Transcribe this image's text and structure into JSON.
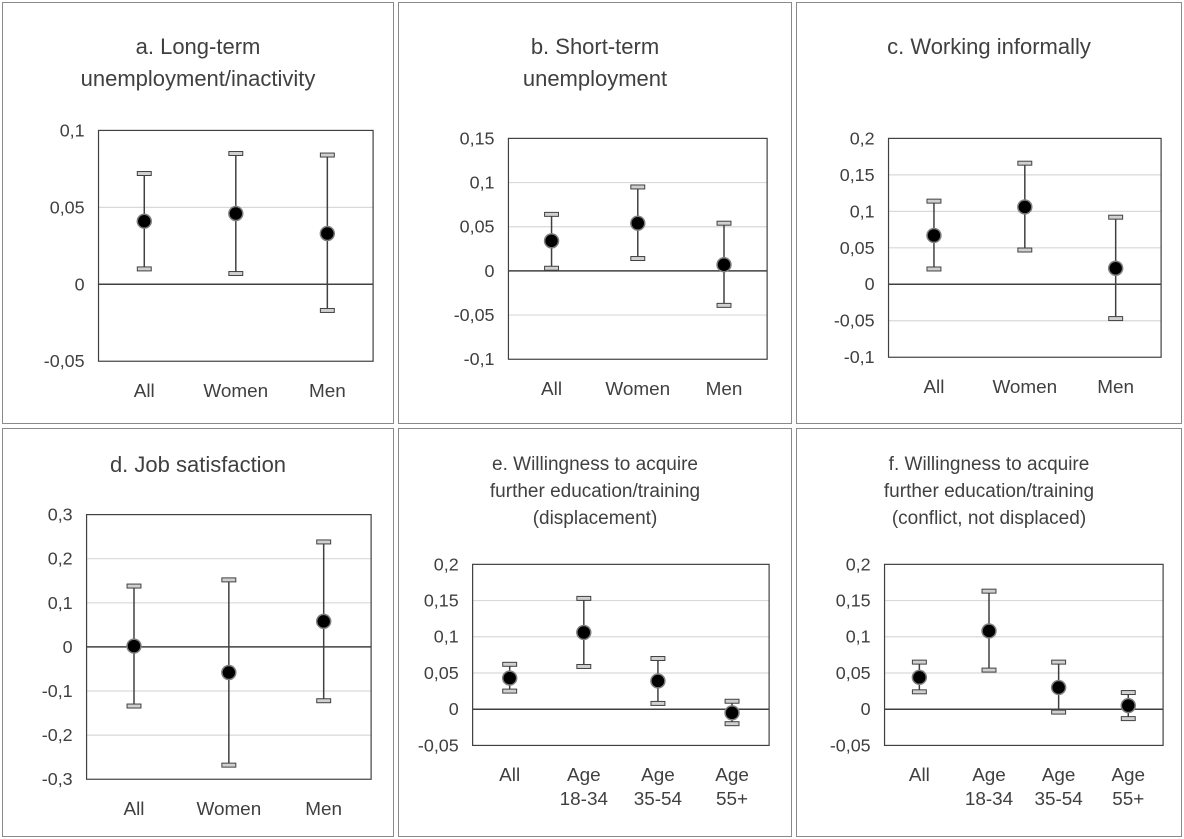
{
  "chart_data": [
    {
      "type": "scatter",
      "title_lines": [
        "a. Long-term",
        "unemployment/inactivity"
      ],
      "categories": [
        [
          "All"
        ],
        [
          "Women"
        ],
        [
          "Men"
        ]
      ],
      "yticks": [
        "0,1",
        "0,05",
        "0",
        "-0,05"
      ],
      "ylim": [
        -0.05,
        0.1
      ],
      "series": [
        {
          "point": 0.041,
          "lower": 0.01,
          "upper": 0.072
        },
        {
          "point": 0.046,
          "lower": 0.007,
          "upper": 0.085
        },
        {
          "point": 0.033,
          "lower": -0.017,
          "upper": 0.084
        }
      ]
    },
    {
      "type": "scatter",
      "title_lines": [
        "b. Short-term",
        "unemployment"
      ],
      "categories": [
        [
          "All"
        ],
        [
          "Women"
        ],
        [
          "Men"
        ]
      ],
      "yticks": [
        "0,15",
        "0,1",
        "0,05",
        "0",
        "-0,05",
        "-0,1"
      ],
      "ylim": [
        -0.1,
        0.15
      ],
      "series": [
        {
          "point": 0.034,
          "lower": 0.003,
          "upper": 0.064
        },
        {
          "point": 0.054,
          "lower": 0.014,
          "upper": 0.095
        },
        {
          "point": 0.007,
          "lower": -0.039,
          "upper": 0.054
        }
      ]
    },
    {
      "type": "scatter",
      "title_lines": [
        "c. Working informally"
      ],
      "categories": [
        [
          "All"
        ],
        [
          "Women"
        ],
        [
          "Men"
        ]
      ],
      "yticks": [
        "0,2",
        "0,15",
        "0,1",
        "0,05",
        "0",
        "-0,05",
        "-0,1"
      ],
      "ylim": [
        -0.1,
        0.2
      ],
      "series": [
        {
          "point": 0.067,
          "lower": 0.021,
          "upper": 0.114
        },
        {
          "point": 0.106,
          "lower": 0.047,
          "upper": 0.166
        },
        {
          "point": 0.022,
          "lower": -0.047,
          "upper": 0.092
        }
      ]
    },
    {
      "type": "scatter",
      "title_lines": [
        "d. Job satisfaction"
      ],
      "categories": [
        [
          "All"
        ],
        [
          "Women"
        ],
        [
          "Men"
        ]
      ],
      "yticks": [
        "0,3",
        "0,2",
        "0,1",
        "0",
        "-0,1",
        "-0,2",
        "-0,3"
      ],
      "ylim": [
        -0.3,
        0.3
      ],
      "series": [
        {
          "point": 0.002,
          "lower": -0.134,
          "upper": 0.138
        },
        {
          "point": -0.058,
          "lower": -0.268,
          "upper": 0.152
        },
        {
          "point": 0.058,
          "lower": -0.122,
          "upper": 0.238
        }
      ]
    },
    {
      "type": "scatter",
      "title_lines": [
        "e. Willingness to acquire",
        "further education/training",
        "(displacement)"
      ],
      "categories": [
        [
          "All"
        ],
        [
          "Age",
          "18-34"
        ],
        [
          "Age",
          "35-54"
        ],
        [
          "Age",
          "55+"
        ]
      ],
      "yticks": [
        "0,2",
        "0,15",
        "0,1",
        "0,05",
        "0",
        "-0,05"
      ],
      "ylim": [
        -0.05,
        0.2
      ],
      "series": [
        {
          "point": 0.043,
          "lower": 0.025,
          "upper": 0.062
        },
        {
          "point": 0.106,
          "lower": 0.059,
          "upper": 0.153
        },
        {
          "point": 0.039,
          "lower": 0.008,
          "upper": 0.07
        },
        {
          "point": -0.005,
          "lower": -0.02,
          "upper": 0.011
        }
      ]
    },
    {
      "type": "scatter",
      "title_lines": [
        "f. Willingness to acquire",
        "further education/training",
        "(conflict, not displaced)"
      ],
      "categories": [
        [
          "All"
        ],
        [
          "Age",
          "18-34"
        ],
        [
          "Age",
          "35-54"
        ],
        [
          "Age",
          "55+"
        ]
      ],
      "yticks": [
        "0,2",
        "0,15",
        "0,1",
        "0,05",
        "0",
        "-0,05"
      ],
      "ylim": [
        -0.05,
        0.2
      ],
      "series": [
        {
          "point": 0.044,
          "lower": 0.024,
          "upper": 0.065
        },
        {
          "point": 0.108,
          "lower": 0.054,
          "upper": 0.163
        },
        {
          "point": 0.03,
          "lower": -0.004,
          "upper": 0.065
        },
        {
          "point": 0.005,
          "lower": -0.013,
          "upper": 0.023
        }
      ]
    }
  ]
}
